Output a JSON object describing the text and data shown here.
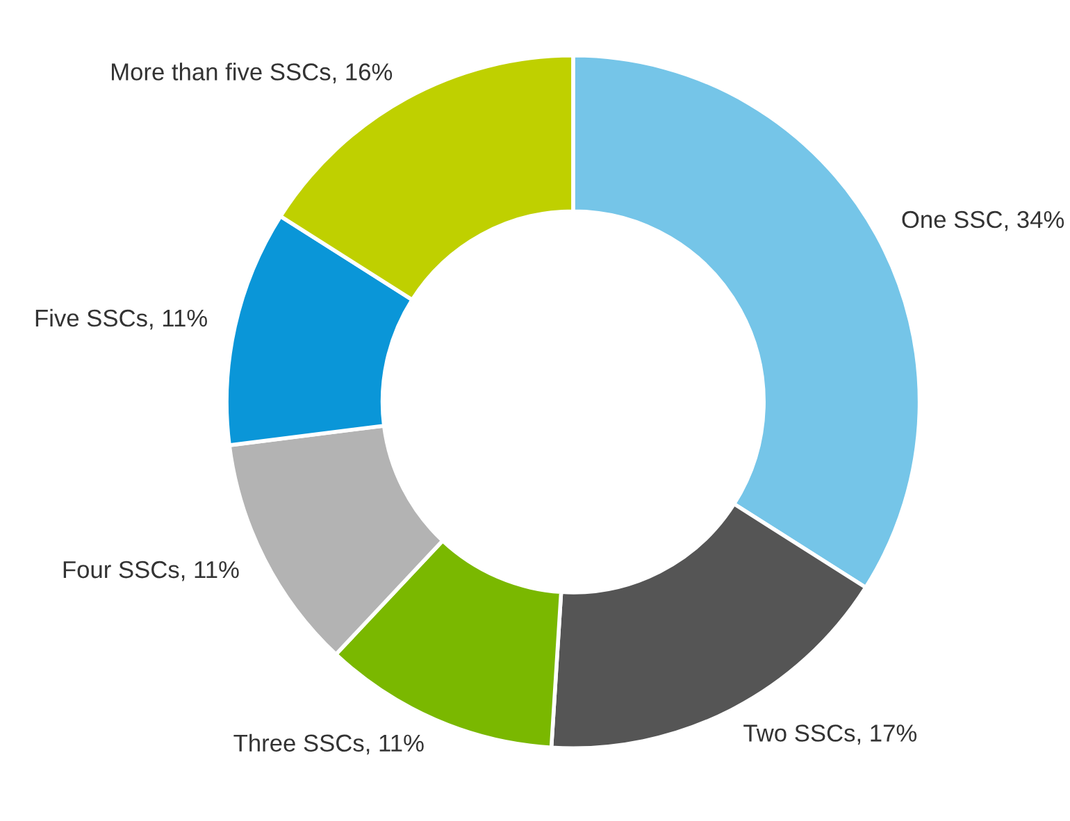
{
  "chart_data": {
    "type": "donut",
    "categories": [
      "One SSC",
      "Two SSCs",
      "Three SSCs",
      "Four SSCs",
      "Five SSCs",
      "More than five SSCs"
    ],
    "values": [
      34,
      17,
      11,
      11,
      11,
      16
    ],
    "value_labels": [
      "34%",
      "17%",
      "11%",
      "11%",
      "11%",
      "16%"
    ],
    "colors": [
      "#75c5e8",
      "#555555",
      "#7ab800",
      "#b3b3b3",
      "#0a96d8",
      "#bfd000"
    ],
    "legend": false
  }
}
